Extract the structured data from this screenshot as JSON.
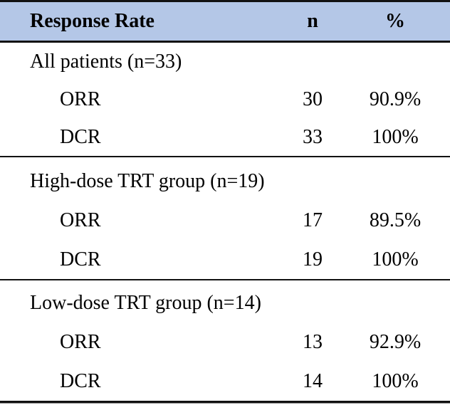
{
  "table": {
    "header": {
      "col1": "Response Rate",
      "col2": "n",
      "col3": "%"
    },
    "sections": [
      {
        "label": "All patients (n=33)",
        "rows": [
          {
            "label": "ORR",
            "n": "30",
            "pct": "90.9%"
          },
          {
            "label": "DCR",
            "n": "33",
            "pct": "100%"
          }
        ]
      },
      {
        "label": "High-dose TRT group (n=19)",
        "rows": [
          {
            "label": "ORR",
            "n": "17",
            "pct": "89.5%"
          },
          {
            "label": "DCR",
            "n": "19",
            "pct": "100%"
          }
        ]
      },
      {
        "label": "Low-dose TRT group (n=14)",
        "rows": [
          {
            "label": "ORR",
            "n": "13",
            "pct": "92.9%"
          },
          {
            "label": "DCR",
            "n": "14",
            "pct": "100%"
          }
        ]
      }
    ],
    "colors": {
      "header_bg": "#b4c7e7",
      "rule": "#121212",
      "text": "#000000"
    }
  }
}
